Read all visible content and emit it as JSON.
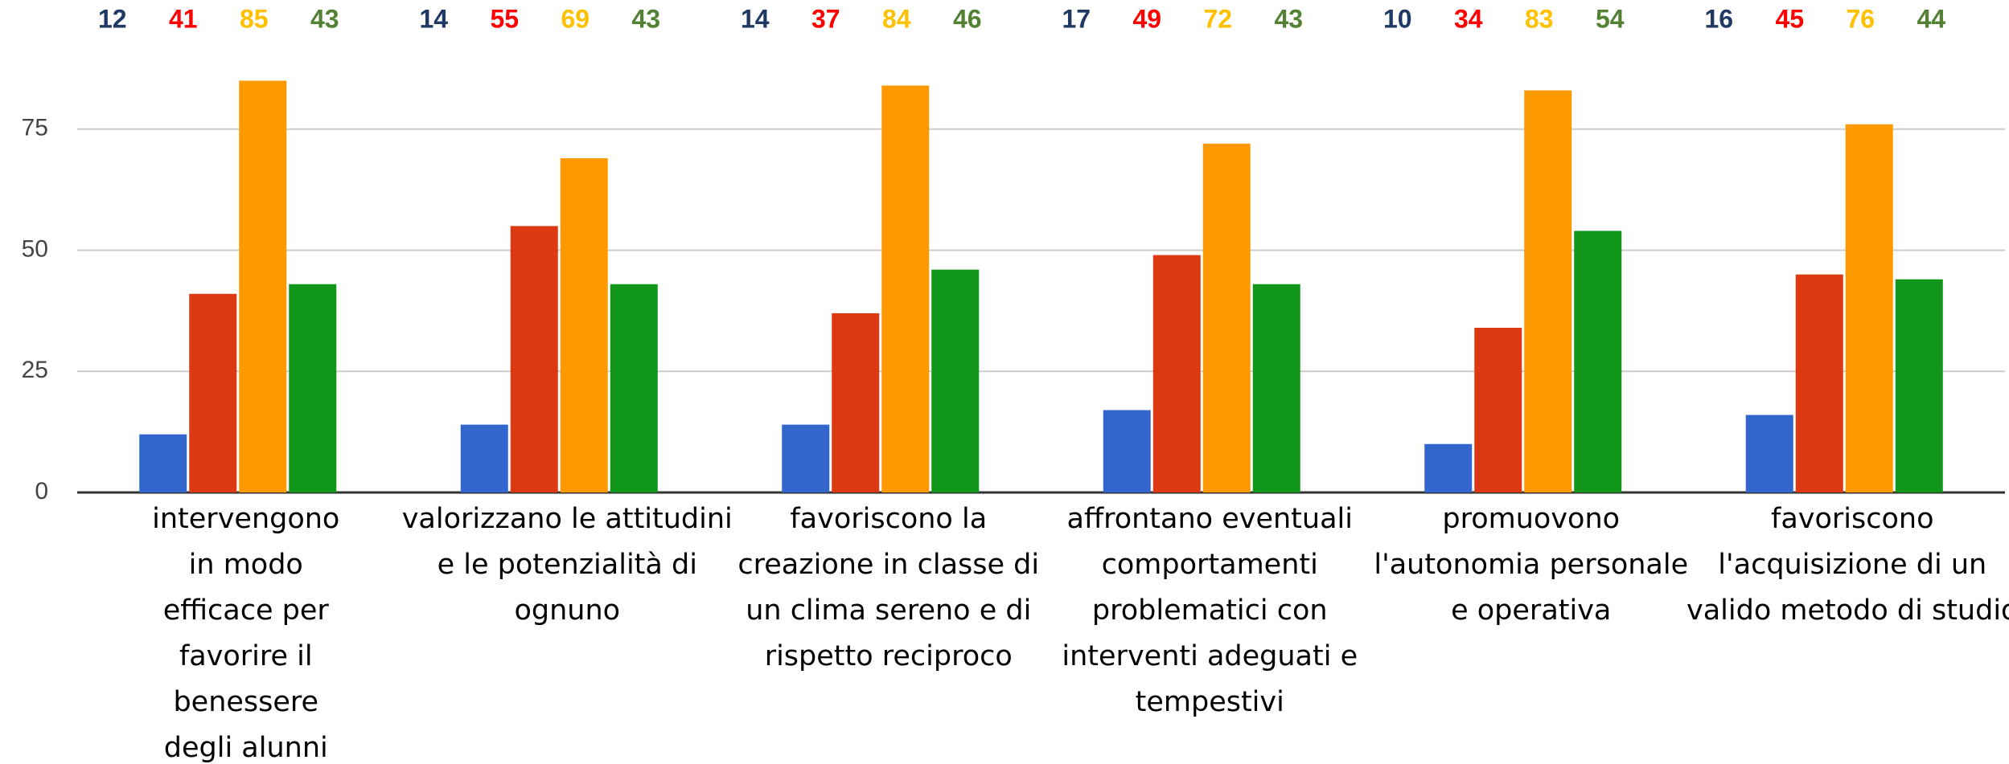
{
  "chart_data": {
    "type": "bar",
    "categories": [
      "intervengono in modo efficace per favorire il benessere degli alunni",
      "valorizzano le attitudini e le potenzialità di ognuno",
      "favoriscono la creazione in classe di un clima sereno e di rispetto reciproco",
      "affrontano eventuali comportamenti problematici con interventi adeguati e tempestivi",
      "promuovono l'autonomia personale e operativa",
      "favoriscono l'acquisizione di un valido metodo di studio"
    ],
    "series": [
      {
        "color": "#3366cc",
        "label_color": "#1f3864",
        "values": [
          12,
          14,
          14,
          17,
          10,
          16
        ]
      },
      {
        "color": "#dc3912",
        "label_color": "#ff0000",
        "values": [
          41,
          55,
          37,
          49,
          34,
          45
        ]
      },
      {
        "color": "#ff9900",
        "label_color": "#ffc000",
        "values": [
          85,
          69,
          84,
          72,
          83,
          76
        ]
      },
      {
        "color": "#109618",
        "label_color": "#548235",
        "values": [
          43,
          43,
          46,
          43,
          54,
          44
        ]
      }
    ],
    "ylim": [
      0,
      87
    ],
    "yticks": [
      0,
      25,
      50,
      75
    ],
    "grid": true
  }
}
